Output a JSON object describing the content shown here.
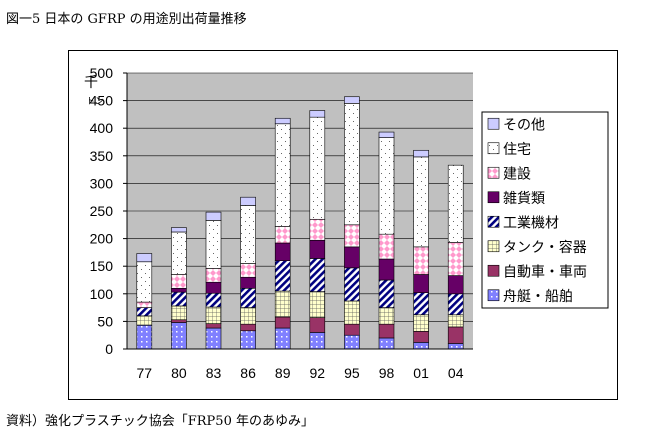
{
  "title": "図一5 日本の GFRP の用途別出荷量推移",
  "caption": "資料）強化プラスチック協会「FRP50 年のあゆみ」",
  "chart_data": {
    "type": "bar",
    "stacked": true,
    "title": "",
    "xlabel": "",
    "ylabel": "千トン",
    "ylim": [
      0,
      500
    ],
    "yticks": [
      0,
      50,
      100,
      150,
      200,
      250,
      300,
      350,
      400,
      450,
      500
    ],
    "grid": true,
    "legend_position": "right",
    "categories": [
      "77",
      "80",
      "83",
      "86",
      "89",
      "92",
      "95",
      "98",
      "01",
      "04"
    ],
    "series": [
      {
        "name": "舟艇・船舶",
        "color": "#8080ff",
        "pattern": "dots",
        "values": [
          43,
          48,
          38,
          33,
          38,
          30,
          25,
          20,
          12,
          10
        ]
      },
      {
        "name": "自動車・車両",
        "color": "#993366",
        "pattern": "solid",
        "values": [
          0,
          5,
          8,
          12,
          20,
          27,
          20,
          25,
          20,
          30
        ]
      },
      {
        "name": "タンク・容器",
        "color": "#ffffcc",
        "pattern": "grid",
        "values": [
          17,
          25,
          30,
          30,
          47,
          47,
          42,
          30,
          30,
          22
        ]
      },
      {
        "name": "工業機材",
        "color": "#000080",
        "pattern": "hatch",
        "values": [
          15,
          25,
          25,
          35,
          55,
          60,
          60,
          50,
          40,
          38
        ]
      },
      {
        "name": "雑貨類",
        "color": "#660066",
        "pattern": "solid",
        "values": [
          0,
          7,
          20,
          20,
          32,
          33,
          38,
          38,
          33,
          33
        ]
      },
      {
        "name": "建設",
        "color": "#ff99cc",
        "pattern": "diamonds",
        "values": [
          10,
          25,
          25,
          25,
          30,
          38,
          40,
          45,
          50,
          60
        ]
      },
      {
        "name": "住宅",
        "color": "#ffffff",
        "pattern": "sparse-dots",
        "values": [
          73,
          77,
          87,
          105,
          186,
          185,
          220,
          175,
          163,
          140
        ]
      },
      {
        "name": "その他",
        "color": "#ccccff",
        "pattern": "solid",
        "values": [
          15,
          8,
          15,
          15,
          10,
          12,
          12,
          10,
          12,
          0
        ]
      }
    ]
  }
}
